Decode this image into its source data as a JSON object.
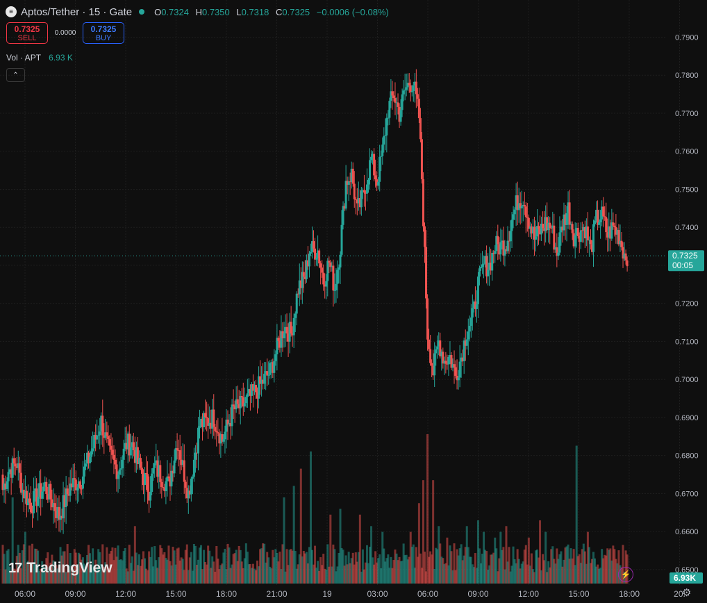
{
  "header": {
    "logo_glyph": "≡",
    "symbol": "Aptos/Tether · 15 · Gate",
    "open_label": "O",
    "open": "0.7324",
    "high_label": "H",
    "high": "0.7350",
    "low_label": "L",
    "low": "0.7318",
    "close_label": "C",
    "close": "0.7325",
    "change": "−0.0006 (−0.08%)"
  },
  "trade": {
    "sell_price": "0.7325",
    "sell_label": "SELL",
    "spread": "0.0000",
    "buy_price": "0.7325",
    "buy_label": "BUY"
  },
  "volume_legend": {
    "label": "Vol · APT",
    "value": "6.93 K"
  },
  "collapse_glyph": "⌃",
  "watermark": {
    "glyph": "17",
    "text": "TradingView"
  },
  "icons": {
    "bolt": "⚡",
    "gear": "⚙"
  },
  "colors": {
    "up": "#26a69a",
    "down": "#ef5350",
    "background": "#0f0f0f"
  },
  "chart_data": {
    "type": "candlestick",
    "interval": "15",
    "y_ticks": [
      "0.7900",
      "0.7800",
      "0.7700",
      "0.7600",
      "0.7500",
      "0.7400",
      "0.7300",
      "0.7200",
      "0.7100",
      "0.7000",
      "0.6900",
      "0.6800",
      "0.6700",
      "0.6600",
      "0.6500"
    ],
    "ylim": [
      0.6445,
      0.7952
    ],
    "x_ticks": [
      "06:00",
      "09:00",
      "12:00",
      "15:00",
      "18:00",
      "21:00",
      "19",
      "03:00",
      "06:00",
      "09:00",
      "12:00",
      "15:00",
      "18:00",
      "20:"
    ],
    "last_price_label": "0.7325",
    "countdown": "00:05",
    "last_volume_label": "6.93K",
    "grid": true,
    "price_path": [
      [
        0,
        0.671
      ],
      [
        4,
        0.676
      ],
      [
        10,
        0.678
      ],
      [
        14,
        0.671
      ],
      [
        20,
        0.667
      ],
      [
        30,
        0.672
      ],
      [
        40,
        0.664
      ],
      [
        48,
        0.672
      ],
      [
        56,
        0.674
      ],
      [
        62,
        0.68
      ],
      [
        70,
        0.689
      ],
      [
        76,
        0.68
      ],
      [
        82,
        0.676
      ],
      [
        88,
        0.683
      ],
      [
        92,
        0.683
      ],
      [
        96,
        0.678
      ],
      [
        104,
        0.671
      ],
      [
        108,
        0.677
      ],
      [
        118,
        0.672
      ],
      [
        124,
        0.684
      ],
      [
        132,
        0.67
      ],
      [
        140,
        0.688
      ],
      [
        150,
        0.69
      ],
      [
        156,
        0.684
      ],
      [
        164,
        0.692
      ],
      [
        170,
        0.693
      ],
      [
        180,
        0.697
      ],
      [
        190,
        0.702
      ],
      [
        200,
        0.714
      ],
      [
        205,
        0.712
      ],
      [
        210,
        0.724
      ],
      [
        215,
        0.727
      ],
      [
        218,
        0.734
      ],
      [
        224,
        0.734
      ],
      [
        228,
        0.726
      ],
      [
        232,
        0.731
      ],
      [
        236,
        0.724
      ],
      [
        240,
        0.735
      ],
      [
        244,
        0.752
      ],
      [
        248,
        0.754
      ],
      [
        252,
        0.744
      ],
      [
        256,
        0.748
      ],
      [
        262,
        0.758
      ],
      [
        266,
        0.752
      ],
      [
        270,
        0.76
      ],
      [
        274,
        0.771
      ],
      [
        278,
        0.775
      ],
      [
        282,
        0.77
      ],
      [
        286,
        0.776
      ],
      [
        289,
        0.778
      ],
      [
        292,
        0.778
      ],
      [
        296,
        0.769
      ],
      [
        298,
        0.753
      ],
      [
        302,
        0.712
      ],
      [
        306,
        0.702
      ],
      [
        310,
        0.71
      ],
      [
        314,
        0.705
      ],
      [
        318,
        0.706
      ],
      [
        322,
        0.701
      ],
      [
        326,
        0.706
      ],
      [
        330,
        0.713
      ],
      [
        334,
        0.716
      ],
      [
        338,
        0.725
      ],
      [
        342,
        0.73
      ],
      [
        346,
        0.73
      ],
      [
        350,
        0.735
      ],
      [
        354,
        0.735
      ],
      [
        358,
        0.736
      ],
      [
        362,
        0.742
      ],
      [
        366,
        0.747
      ],
      [
        370,
        0.748
      ],
      [
        374,
        0.742
      ],
      [
        378,
        0.737
      ],
      [
        382,
        0.739
      ],
      [
        386,
        0.741
      ],
      [
        390,
        0.74
      ],
      [
        394,
        0.733
      ],
      [
        398,
        0.741
      ],
      [
        402,
        0.745
      ],
      [
        406,
        0.738
      ],
      [
        410,
        0.739
      ],
      [
        414,
        0.74
      ],
      [
        418,
        0.734
      ],
      [
        422,
        0.742
      ],
      [
        426,
        0.743
      ],
      [
        430,
        0.738
      ],
      [
        434,
        0.74
      ],
      [
        438,
        0.738
      ],
      [
        442,
        0.733
      ],
      [
        446,
        0.7325
      ]
    ],
    "volume_series": {
      "min": 0.2,
      "max": 6.93,
      "spikes": [
        [
          4,
          6
        ],
        [
          7,
          15
        ],
        [
          16,
          9
        ],
        [
          94,
          10
        ],
        [
          126,
          4
        ],
        [
          173,
          7
        ],
        [
          181,
          4
        ],
        [
          183,
          6
        ],
        [
          185,
          7
        ],
        [
          194,
          6
        ],
        [
          200,
          15
        ],
        [
          207,
          17
        ],
        [
          212,
          20
        ],
        [
          219,
          23
        ],
        [
          233,
          12
        ],
        [
          236,
          6
        ],
        [
          240,
          13
        ],
        [
          254,
          12
        ],
        [
          262,
          10
        ],
        [
          270,
          9
        ],
        [
          290,
          9
        ],
        [
          296,
          14
        ],
        [
          299,
          18
        ],
        [
          302,
          26
        ],
        [
          306,
          18
        ],
        [
          310,
          10
        ],
        [
          316,
          8
        ],
        [
          321,
          7
        ],
        [
          330,
          10
        ],
        [
          338,
          11
        ],
        [
          342,
          9
        ],
        [
          350,
          8
        ],
        [
          354,
          9
        ],
        [
          358,
          10
        ],
        [
          366,
          6
        ],
        [
          374,
          8
        ],
        [
          382,
          11
        ],
        [
          386,
          9
        ],
        [
          390,
          6
        ],
        [
          408,
          24
        ],
        [
          412,
          6
        ],
        [
          416,
          9
        ]
      ]
    }
  }
}
